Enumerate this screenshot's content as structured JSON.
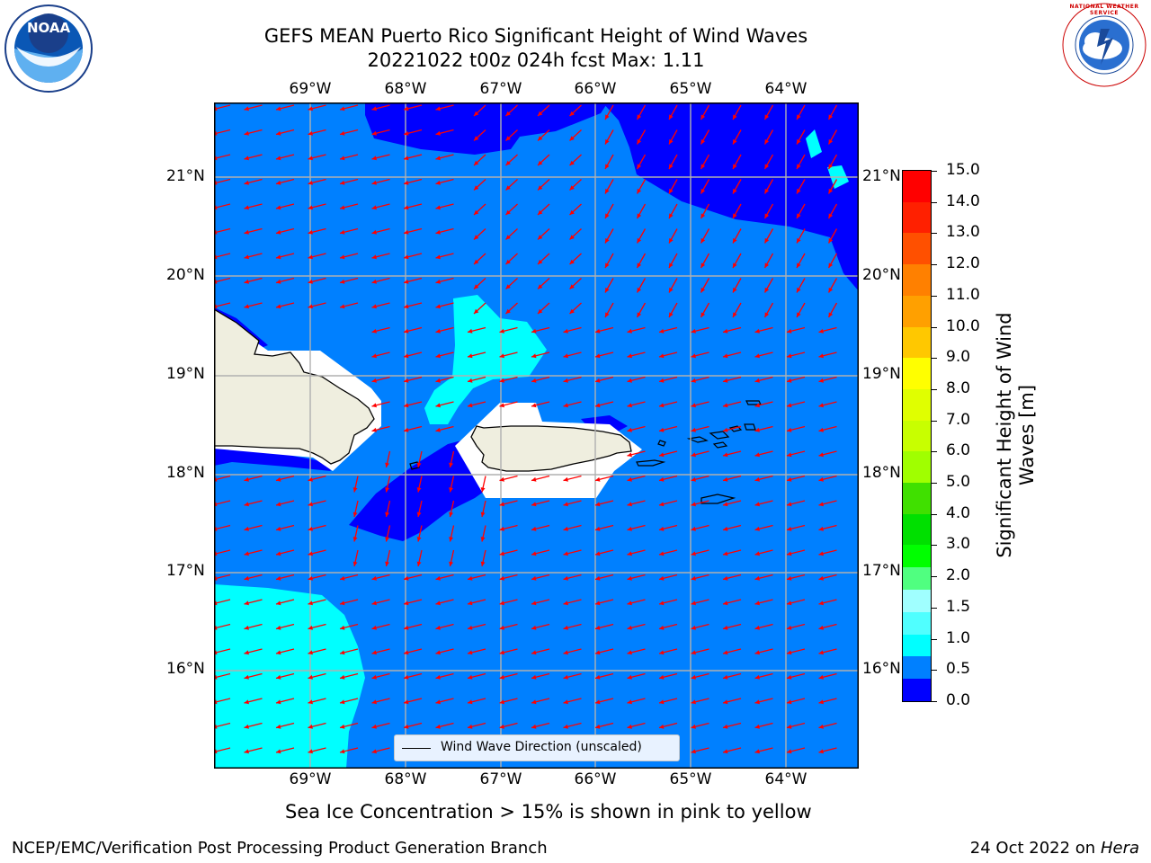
{
  "header": {
    "title_line1": "GEFS MEAN Puerto Rico Significant Height of Wind Waves",
    "title_line2": "20221022 t00z 024h fcst   Max: 1.11"
  },
  "logos": {
    "left": "NOAA",
    "right": "NATIONAL WEATHER SERVICE"
  },
  "map": {
    "lon_labels": [
      "69°W",
      "68°W",
      "67°W",
      "66°W",
      "65°W",
      "64°W"
    ],
    "lat_labels": [
      "21°N",
      "20°N",
      "19°N",
      "18°N",
      "17°N",
      "16°N"
    ],
    "legend": "Wind Wave Direction (unscaled)",
    "colors": {
      "land": "#efeedf",
      "level_0_0p5": "#0000ff",
      "level_0p5_1": "#0080ff",
      "level_1_1p5": "#00ffff",
      "arrow": "#ff0000",
      "grid": "#b0b0b0"
    }
  },
  "colorbar": {
    "label": "Significant Height of Wind Waves [m]",
    "label_line1": "Significant Height of Wind",
    "label_line2": "Waves [m]",
    "ticks": [
      "15.0",
      "14.0",
      "13.0",
      "12.0",
      "11.0",
      "10.0",
      "9.0",
      "8.0",
      "7.0",
      "6.0",
      "5.0",
      "4.0",
      "3.0",
      "2.0",
      "1.5",
      "1.0",
      "0.5",
      "0.0"
    ],
    "colors_top_to_bottom": [
      "#ff0000",
      "#ff2000",
      "#ff5000",
      "#ff8000",
      "#ffa000",
      "#ffc800",
      "#ffff00",
      "#e0ff00",
      "#c8ff00",
      "#a0ff00",
      "#40e000",
      "#00e000",
      "#00ff00",
      "#50ff80",
      "#a0ffff",
      "#50ffff",
      "#00ffff",
      "#0080ff",
      "#0000ff"
    ]
  },
  "notes": {
    "sea_ice": "Sea Ice Concentration > 15% is shown in pink to yellow"
  },
  "footer": {
    "left": "NCEP/EMC/Verification Post Processing Product Generation Branch",
    "right_date": "24 Oct 2022 on ",
    "right_host": "Hera"
  }
}
